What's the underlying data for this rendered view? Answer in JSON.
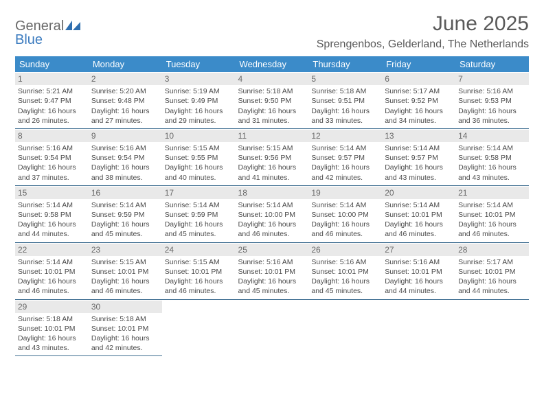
{
  "logo": {
    "word1": "General",
    "word2": "Blue"
  },
  "title": "June 2025",
  "location": "Sprengenbos, Gelderland, The Netherlands",
  "colors": {
    "header_bg": "#3b8bc9",
    "header_text": "#ffffff",
    "daynum_bg": "#e9e9e9",
    "border": "#3b6b8f",
    "text": "#4a4a4a",
    "title_text": "#5a5a5a",
    "logo_gray": "#6b6b6b",
    "logo_blue": "#3b7bbf"
  },
  "weekdays": [
    "Sunday",
    "Monday",
    "Tuesday",
    "Wednesday",
    "Thursday",
    "Friday",
    "Saturday"
  ],
  "weeks": [
    [
      {
        "n": "1",
        "sr": "5:21 AM",
        "ss": "9:47 PM",
        "dl": "16 hours and 26 minutes."
      },
      {
        "n": "2",
        "sr": "5:20 AM",
        "ss": "9:48 PM",
        "dl": "16 hours and 27 minutes."
      },
      {
        "n": "3",
        "sr": "5:19 AM",
        "ss": "9:49 PM",
        "dl": "16 hours and 29 minutes."
      },
      {
        "n": "4",
        "sr": "5:18 AM",
        "ss": "9:50 PM",
        "dl": "16 hours and 31 minutes."
      },
      {
        "n": "5",
        "sr": "5:18 AM",
        "ss": "9:51 PM",
        "dl": "16 hours and 33 minutes."
      },
      {
        "n": "6",
        "sr": "5:17 AM",
        "ss": "9:52 PM",
        "dl": "16 hours and 34 minutes."
      },
      {
        "n": "7",
        "sr": "5:16 AM",
        "ss": "9:53 PM",
        "dl": "16 hours and 36 minutes."
      }
    ],
    [
      {
        "n": "8",
        "sr": "5:16 AM",
        "ss": "9:54 PM",
        "dl": "16 hours and 37 minutes."
      },
      {
        "n": "9",
        "sr": "5:16 AM",
        "ss": "9:54 PM",
        "dl": "16 hours and 38 minutes."
      },
      {
        "n": "10",
        "sr": "5:15 AM",
        "ss": "9:55 PM",
        "dl": "16 hours and 40 minutes."
      },
      {
        "n": "11",
        "sr": "5:15 AM",
        "ss": "9:56 PM",
        "dl": "16 hours and 41 minutes."
      },
      {
        "n": "12",
        "sr": "5:14 AM",
        "ss": "9:57 PM",
        "dl": "16 hours and 42 minutes."
      },
      {
        "n": "13",
        "sr": "5:14 AM",
        "ss": "9:57 PM",
        "dl": "16 hours and 43 minutes."
      },
      {
        "n": "14",
        "sr": "5:14 AM",
        "ss": "9:58 PM",
        "dl": "16 hours and 43 minutes."
      }
    ],
    [
      {
        "n": "15",
        "sr": "5:14 AM",
        "ss": "9:58 PM",
        "dl": "16 hours and 44 minutes."
      },
      {
        "n": "16",
        "sr": "5:14 AM",
        "ss": "9:59 PM",
        "dl": "16 hours and 45 minutes."
      },
      {
        "n": "17",
        "sr": "5:14 AM",
        "ss": "9:59 PM",
        "dl": "16 hours and 45 minutes."
      },
      {
        "n": "18",
        "sr": "5:14 AM",
        "ss": "10:00 PM",
        "dl": "16 hours and 46 minutes."
      },
      {
        "n": "19",
        "sr": "5:14 AM",
        "ss": "10:00 PM",
        "dl": "16 hours and 46 minutes."
      },
      {
        "n": "20",
        "sr": "5:14 AM",
        "ss": "10:01 PM",
        "dl": "16 hours and 46 minutes."
      },
      {
        "n": "21",
        "sr": "5:14 AM",
        "ss": "10:01 PM",
        "dl": "16 hours and 46 minutes."
      }
    ],
    [
      {
        "n": "22",
        "sr": "5:14 AM",
        "ss": "10:01 PM",
        "dl": "16 hours and 46 minutes."
      },
      {
        "n": "23",
        "sr": "5:15 AM",
        "ss": "10:01 PM",
        "dl": "16 hours and 46 minutes."
      },
      {
        "n": "24",
        "sr": "5:15 AM",
        "ss": "10:01 PM",
        "dl": "16 hours and 46 minutes."
      },
      {
        "n": "25",
        "sr": "5:16 AM",
        "ss": "10:01 PM",
        "dl": "16 hours and 45 minutes."
      },
      {
        "n": "26",
        "sr": "5:16 AM",
        "ss": "10:01 PM",
        "dl": "16 hours and 45 minutes."
      },
      {
        "n": "27",
        "sr": "5:16 AM",
        "ss": "10:01 PM",
        "dl": "16 hours and 44 minutes."
      },
      {
        "n": "28",
        "sr": "5:17 AM",
        "ss": "10:01 PM",
        "dl": "16 hours and 44 minutes."
      }
    ],
    [
      {
        "n": "29",
        "sr": "5:18 AM",
        "ss": "10:01 PM",
        "dl": "16 hours and 43 minutes."
      },
      {
        "n": "30",
        "sr": "5:18 AM",
        "ss": "10:01 PM",
        "dl": "16 hours and 42 minutes."
      },
      null,
      null,
      null,
      null,
      null
    ]
  ],
  "labels": {
    "sunrise": "Sunrise: ",
    "sunset": "Sunset: ",
    "daylight": "Daylight: "
  }
}
